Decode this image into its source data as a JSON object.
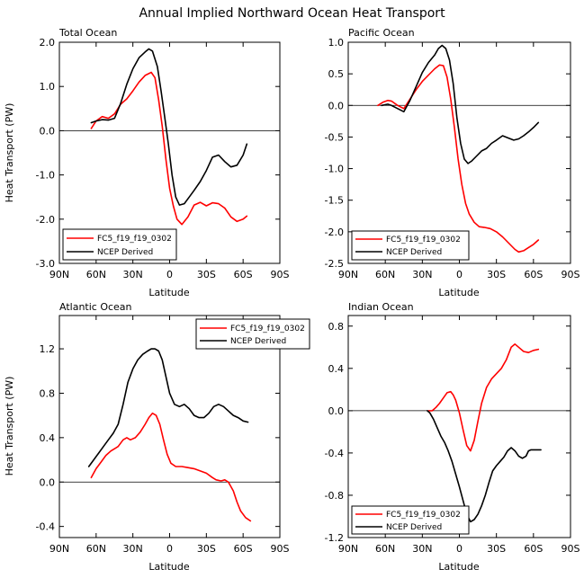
{
  "figure_title": "Annual Implied Northward Ocean Heat Transport",
  "colors": {
    "model": "#ff0000",
    "obs": "#000000"
  },
  "chart_data": [
    {
      "type": "line",
      "title": "Total Ocean",
      "xlabel": "Latitude",
      "ylabel": "Heat Transport (PW)",
      "xlim": [
        90,
        -90
      ],
      "ylim": [
        -3.0,
        2.0
      ],
      "xticks": [
        90,
        60,
        30,
        0,
        -30,
        -60,
        -90
      ],
      "xticklabels": [
        "90N",
        "60N",
        "30N",
        "0",
        "30S",
        "60S",
        "90S"
      ],
      "yticks": [
        -3.0,
        -2.0,
        -1.0,
        0.0,
        1.0,
        2.0
      ],
      "yticklabels": [
        "-3.0",
        "-2.0",
        "-1.0",
        "0.0",
        "1.0",
        "2.0"
      ],
      "legend_position": "bottom-left",
      "series": [
        {
          "name": "FC5_f19_f19_0302",
          "color": "#ff0000",
          "x": [
            64,
            60,
            55,
            50,
            45,
            40,
            35,
            30,
            25,
            20,
            15,
            12,
            9,
            6,
            3,
            0,
            -3,
            -6,
            -10,
            -15,
            -20,
            -25,
            -30,
            -35,
            -40,
            -45,
            -50,
            -55,
            -60,
            -63
          ],
          "y": [
            0.05,
            0.22,
            0.32,
            0.28,
            0.38,
            0.6,
            0.72,
            0.9,
            1.1,
            1.25,
            1.32,
            1.2,
            0.7,
            0.1,
            -0.65,
            -1.3,
            -1.7,
            -2.0,
            -2.12,
            -1.95,
            -1.68,
            -1.62,
            -1.7,
            -1.63,
            -1.65,
            -1.75,
            -1.95,
            -2.05,
            -2.0,
            -1.93
          ]
        },
        {
          "name": "NCEP Derived",
          "color": "#000000",
          "x": [
            64,
            60,
            55,
            50,
            45,
            40,
            35,
            30,
            25,
            20,
            17,
            14,
            10,
            7,
            4,
            1,
            -2,
            -5,
            -8,
            -12,
            -16,
            -20,
            -25,
            -30,
            -35,
            -40,
            -45,
            -50,
            -55,
            -60,
            -63
          ],
          "y": [
            0.18,
            0.22,
            0.25,
            0.24,
            0.28,
            0.62,
            1.05,
            1.4,
            1.65,
            1.78,
            1.85,
            1.8,
            1.45,
            0.9,
            0.3,
            -0.3,
            -1.0,
            -1.5,
            -1.68,
            -1.65,
            -1.5,
            -1.35,
            -1.15,
            -0.9,
            -0.6,
            -0.55,
            -0.7,
            -0.82,
            -0.78,
            -0.55,
            -0.3
          ]
        }
      ]
    },
    {
      "type": "line",
      "title": "Pacific Ocean",
      "xlabel": "Latitude",
      "ylabel": "",
      "xlim": [
        90,
        -90
      ],
      "ylim": [
        -2.5,
        1.0
      ],
      "xticks": [
        90,
        60,
        30,
        0,
        -30,
        -60,
        -90
      ],
      "xticklabels": [
        "90N",
        "60N",
        "30N",
        "0",
        "30S",
        "60S",
        "90S"
      ],
      "yticks": [
        -2.5,
        -2.0,
        -1.5,
        -1.0,
        -0.5,
        0.0,
        0.5,
        1.0
      ],
      "yticklabels": [
        "-2.5",
        "-2.0",
        "-1.5",
        "-1.0",
        "-0.5",
        "0.0",
        "0.5",
        "1.0"
      ],
      "legend_position": "bottom-left",
      "series": [
        {
          "name": "FC5_f19_f19_0302",
          "color": "#ff0000",
          "x": [
            66,
            62,
            58,
            55,
            50,
            45,
            40,
            35,
            30,
            25,
            20,
            16,
            13,
            10,
            7,
            4,
            1,
            -2,
            -5,
            -8,
            -12,
            -16,
            -20,
            -25,
            -30,
            -35,
            -40,
            -45,
            -48,
            -52,
            -56,
            -60,
            -64
          ],
          "y": [
            0.0,
            0.05,
            0.08,
            0.07,
            0.0,
            -0.05,
            0.1,
            0.25,
            0.38,
            0.48,
            0.58,
            0.64,
            0.63,
            0.45,
            0.1,
            -0.35,
            -0.85,
            -1.25,
            -1.55,
            -1.72,
            -1.85,
            -1.92,
            -1.93,
            -1.95,
            -2.0,
            -2.08,
            -2.18,
            -2.28,
            -2.32,
            -2.3,
            -2.25,
            -2.2,
            -2.13
          ]
        },
        {
          "name": "NCEP Derived",
          "color": "#000000",
          "x": [
            63,
            58,
            55,
            50,
            45,
            40,
            35,
            30,
            25,
            20,
            17,
            14,
            11,
            8,
            5,
            2,
            -1,
            -4,
            -7,
            -10,
            -14,
            -18,
            -22,
            -26,
            -30,
            -35,
            -40,
            -44,
            -48,
            -52,
            -56,
            -60,
            -64
          ],
          "y": [
            0.0,
            0.02,
            0.0,
            -0.05,
            -0.1,
            0.08,
            0.3,
            0.52,
            0.68,
            0.8,
            0.9,
            0.95,
            0.9,
            0.72,
            0.35,
            -0.2,
            -0.6,
            -0.85,
            -0.92,
            -0.88,
            -0.8,
            -0.72,
            -0.68,
            -0.6,
            -0.55,
            -0.48,
            -0.52,
            -0.55,
            -0.53,
            -0.48,
            -0.42,
            -0.35,
            -0.27
          ]
        }
      ]
    },
    {
      "type": "line",
      "title": "Atlantic Ocean",
      "xlabel": "Latitude",
      "ylabel": "Heat Transport (PW)",
      "xlim": [
        90,
        -90
      ],
      "ylim": [
        -0.5,
        1.5
      ],
      "xticks": [
        90,
        60,
        30,
        0,
        -30,
        -60,
        -90
      ],
      "xticklabels": [
        "90N",
        "60N",
        "30N",
        "0",
        "30S",
        "60S",
        "90S"
      ],
      "yticks": [
        -0.4,
        0.0,
        0.4,
        0.8,
        1.2
      ],
      "yticklabels": [
        "-0.4",
        "0.0",
        "0.4",
        "0.8",
        "1.2"
      ],
      "legend_position": "top-right",
      "series": [
        {
          "name": "FC5_f19_f19_0302",
          "color": "#ff0000",
          "x": [
            64,
            60,
            56,
            52,
            48,
            45,
            42,
            38,
            35,
            32,
            28,
            24,
            20,
            17,
            14,
            11,
            8,
            5,
            2,
            -1,
            -5,
            -10,
            -15,
            -20,
            -25,
            -30,
            -35,
            -38,
            -42,
            -45,
            -48,
            -52,
            -55,
            -58,
            -62,
            -66
          ],
          "y": [
            0.04,
            0.12,
            0.18,
            0.24,
            0.28,
            0.3,
            0.32,
            0.38,
            0.4,
            0.38,
            0.4,
            0.45,
            0.52,
            0.58,
            0.62,
            0.6,
            0.52,
            0.38,
            0.25,
            0.17,
            0.14,
            0.14,
            0.13,
            0.12,
            0.1,
            0.08,
            0.04,
            0.02,
            0.01,
            0.02,
            0.0,
            -0.08,
            -0.18,
            -0.26,
            -0.32,
            -0.35
          ]
        },
        {
          "name": "NCEP Derived",
          "color": "#000000",
          "x": [
            66,
            62,
            58,
            54,
            50,
            46,
            42,
            38,
            34,
            30,
            26,
            22,
            18,
            15,
            12,
            9,
            6,
            3,
            0,
            -4,
            -8,
            -12,
            -16,
            -20,
            -24,
            -28,
            -32,
            -36,
            -40,
            -44,
            -48,
            -52,
            -56,
            -60,
            -64
          ],
          "y": [
            0.14,
            0.2,
            0.26,
            0.32,
            0.38,
            0.44,
            0.52,
            0.7,
            0.9,
            1.02,
            1.1,
            1.15,
            1.18,
            1.2,
            1.2,
            1.18,
            1.1,
            0.95,
            0.8,
            0.7,
            0.68,
            0.7,
            0.66,
            0.6,
            0.58,
            0.58,
            0.62,
            0.68,
            0.7,
            0.68,
            0.64,
            0.6,
            0.58,
            0.55,
            0.54
          ]
        }
      ]
    },
    {
      "type": "line",
      "title": "Indian Ocean",
      "xlabel": "Latitude",
      "ylabel": "",
      "xlim": [
        90,
        -90
      ],
      "ylim": [
        -1.2,
        0.9
      ],
      "xticks": [
        90,
        60,
        30,
        0,
        -30,
        -60,
        -90
      ],
      "xticklabels": [
        "90N",
        "60N",
        "30N",
        "0",
        "30S",
        "60S",
        "90S"
      ],
      "yticks": [
        -1.2,
        -0.8,
        -0.4,
        0.0,
        0.4,
        0.8
      ],
      "yticklabels": [
        "-1.2",
        "-0.8",
        "-0.4",
        "0.0",
        "0.4",
        "0.8"
      ],
      "legend_position": "bottom-left",
      "series": [
        {
          "name": "FC5_f19_f19_0302",
          "color": "#ff0000",
          "x": [
            25,
            22,
            19,
            16,
            13,
            10,
            7,
            5,
            3,
            0,
            -3,
            -6,
            -9,
            -12,
            -15,
            -18,
            -22,
            -26,
            -30,
            -34,
            -38,
            -42,
            -45,
            -48,
            -52,
            -56,
            -60,
            -64
          ],
          "y": [
            0.0,
            0.0,
            0.03,
            0.07,
            0.12,
            0.17,
            0.18,
            0.15,
            0.1,
            -0.02,
            -0.18,
            -0.33,
            -0.38,
            -0.28,
            -0.1,
            0.07,
            0.22,
            0.3,
            0.35,
            0.4,
            0.48,
            0.6,
            0.63,
            0.6,
            0.56,
            0.55,
            0.57,
            0.58
          ]
        },
        {
          "name": "NCEP Derived",
          "color": "#000000",
          "x": [
            26,
            24,
            21,
            18,
            15,
            12,
            9,
            6,
            3,
            0,
            -3,
            -6,
            -9,
            -12,
            -15,
            -18,
            -21,
            -24,
            -27,
            -30,
            -33,
            -36,
            -39,
            -42,
            -45,
            -48,
            -51,
            -54,
            -56,
            -58,
            -62,
            -66
          ],
          "y": [
            0.0,
            -0.02,
            -0.08,
            -0.16,
            -0.24,
            -0.3,
            -0.38,
            -0.48,
            -0.6,
            -0.72,
            -0.85,
            -0.98,
            -1.05,
            -1.03,
            -0.98,
            -0.9,
            -0.8,
            -0.68,
            -0.57,
            -0.52,
            -0.48,
            -0.44,
            -0.38,
            -0.35,
            -0.38,
            -0.43,
            -0.45,
            -0.43,
            -0.38,
            -0.37,
            -0.37,
            -0.37
          ]
        }
      ]
    }
  ]
}
